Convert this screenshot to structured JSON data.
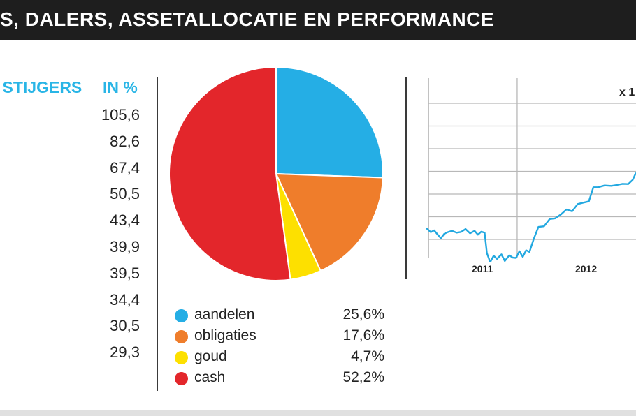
{
  "header": {
    "title": "S, DALERS, ASSETALLOCATIE EN PERFORMANCE"
  },
  "risers": {
    "header_left": "STIJGERS",
    "header_right": "IN %",
    "values": [
      "105,6",
      "82,6",
      "67,4",
      "50,5",
      "43,4",
      "39,9",
      "39,5",
      "34,4",
      "30,5",
      "29,3"
    ]
  },
  "chart_data": [
    {
      "type": "pie",
      "labels": [
        "aandelen",
        "obligaties",
        "goud",
        "cash"
      ],
      "values": [
        25.6,
        17.6,
        4.7,
        52.2
      ],
      "value_labels": [
        "25,6%",
        "17,6%",
        "4,7%",
        "52,2%"
      ],
      "colors": [
        "#25aee5",
        "#ef7d2b",
        "#fde000",
        "#e3262b"
      ]
    },
    {
      "type": "line",
      "scale_label": "x 1",
      "x_ticks": [
        "2011",
        "2012"
      ],
      "series": [
        {
          "color": "#22a8e0",
          "points": [
            [
              2010.73,
              0.5
            ],
            [
              2010.77,
              0.32
            ],
            [
              2010.8,
              0.4
            ],
            [
              2010.83,
              0.22
            ],
            [
              2010.86,
              0.05
            ],
            [
              2010.89,
              0.25
            ],
            [
              2010.92,
              0.32
            ],
            [
              2010.96,
              0.38
            ],
            [
              2011.0,
              0.3
            ],
            [
              2011.04,
              0.33
            ],
            [
              2011.08,
              0.46
            ],
            [
              2011.12,
              0.27
            ],
            [
              2011.16,
              0.38
            ],
            [
              2011.19,
              0.21
            ],
            [
              2011.22,
              0.34
            ],
            [
              2011.25,
              0.3
            ],
            [
              2011.27,
              -0.6
            ],
            [
              2011.3,
              -1.0
            ],
            [
              2011.33,
              -0.72
            ],
            [
              2011.36,
              -0.86
            ],
            [
              2011.4,
              -0.66
            ],
            [
              2011.43,
              -0.95
            ],
            [
              2011.47,
              -0.7
            ],
            [
              2011.5,
              -0.8
            ],
            [
              2011.53,
              -0.82
            ],
            [
              2011.56,
              -0.52
            ],
            [
              2011.59,
              -0.77
            ],
            [
              2011.62,
              -0.48
            ],
            [
              2011.65,
              -0.55
            ],
            [
              2011.69,
              0.05
            ],
            [
              2011.73,
              0.55
            ],
            [
              2011.78,
              0.58
            ],
            [
              2011.83,
              0.9
            ],
            [
              2011.88,
              0.93
            ],
            [
              2011.93,
              1.1
            ],
            [
              2011.98,
              1.32
            ],
            [
              2012.03,
              1.24
            ],
            [
              2012.08,
              1.56
            ],
            [
              2012.13,
              1.62
            ],
            [
              2012.18,
              1.68
            ],
            [
              2012.22,
              2.3
            ],
            [
              2012.26,
              2.3
            ],
            [
              2012.32,
              2.38
            ],
            [
              2012.38,
              2.36
            ],
            [
              2012.43,
              2.4
            ],
            [
              2012.48,
              2.45
            ],
            [
              2012.53,
              2.44
            ],
            [
              2012.57,
              2.62
            ],
            [
              2012.6,
              2.94
            ]
          ]
        }
      ]
    }
  ]
}
